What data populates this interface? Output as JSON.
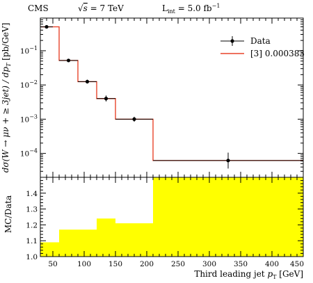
{
  "header": {
    "experiment": "CMS",
    "sqrt_prefix": "√",
    "sqrt_var": "s",
    "energy": " = 7 TeV",
    "lumi_main": "L",
    "lumi_sub": "int",
    "lumi_value": " = 5.0 fb",
    "lumi_exp": "−1"
  },
  "chart_data": [
    {
      "type": "step",
      "ylabel": "dσ(W → μν + ≥ 3jet) / dp_T [pb/GeV]",
      "ylabel_parts": {
        "pre": "dσ(W → μν + ≥ 3jet) / dp",
        "sub": "T",
        "post": " [pb/GeV]"
      },
      "xlim": [
        30,
        450
      ],
      "ylim": [
        2e-05,
        0.9
      ],
      "yscale": "log",
      "ytick_labels": [
        {
          "value": 0.0001,
          "base": "10",
          "exp": "−4"
        },
        {
          "value": 0.001,
          "base": "10",
          "exp": "−3"
        },
        {
          "value": 0.01,
          "base": "10",
          "exp": "−2"
        },
        {
          "value": 0.1,
          "base": "10",
          "exp": "−1"
        }
      ],
      "legend": {
        "placement": "top-right",
        "entries": [
          {
            "key": "data",
            "label": "Data",
            "color": "#000000"
          },
          {
            "key": "mc",
            "label": "[3] 0.000383",
            "color": "#e8442a"
          }
        ]
      },
      "series": [
        {
          "name": "Data",
          "kind": "points",
          "points": [
            {
              "x": 40,
              "xerr": 10,
              "y": 0.5,
              "ylo": 0.46,
              "yhi": 0.54
            },
            {
              "x": 75,
              "xerr": 15,
              "y": 0.052,
              "ylo": 0.047,
              "yhi": 0.057
            },
            {
              "x": 105,
              "xerr": 15,
              "y": 0.0125,
              "ylo": 0.011,
              "yhi": 0.0142
            },
            {
              "x": 135,
              "xerr": 15,
              "y": 0.004,
              "ylo": 0.0033,
              "yhi": 0.0049
            },
            {
              "x": 180,
              "xerr": 30,
              "y": 0.001,
              "ylo": 0.00084,
              "yhi": 0.00118
            },
            {
              "x": 330,
              "xerr": 120,
              "y": 6.2e-05,
              "ylo": 3.6e-05,
              "yhi": 0.000105
            }
          ]
        },
        {
          "name": "[3] 0.000383",
          "kind": "histogram",
          "bins": [
            {
              "lo": 30,
              "hi": 60,
              "y": 0.5
            },
            {
              "lo": 60,
              "hi": 90,
              "y": 0.052
            },
            {
              "lo": 90,
              "hi": 120,
              "y": 0.0125
            },
            {
              "lo": 120,
              "hi": 150,
              "y": 0.004
            },
            {
              "lo": 150,
              "hi": 210,
              "y": 0.001
            },
            {
              "lo": 210,
              "hi": 450,
              "y": 6.2e-05
            }
          ]
        }
      ]
    },
    {
      "type": "band",
      "ylabel": "MC/Data",
      "xlabel": "Third leading jet p_T [GeV]",
      "xlabel_parts": {
        "pre": "Third leading jet ",
        "var": "p",
        "sub": "T",
        "post": " [GeV]"
      },
      "xlim": [
        30,
        450
      ],
      "ylim": [
        1.0,
        1.5
      ],
      "xticks": [
        50,
        100,
        150,
        200,
        250,
        300,
        350,
        400,
        450
      ],
      "xtick_labels": [
        "50",
        "100",
        "150",
        "200",
        "250",
        "300",
        "350",
        "400",
        "450"
      ],
      "yticks": [
        1.0,
        1.1,
        1.2,
        1.3,
        1.4
      ],
      "ytick_labels": [
        "1.0",
        "1.1",
        "1.2",
        "1.3",
        "1.4"
      ],
      "band_color": "#ffff00",
      "bins": [
        {
          "lo": 30,
          "hi": 60,
          "y": 1.09
        },
        {
          "lo": 60,
          "hi": 120,
          "y": 1.17
        },
        {
          "lo": 120,
          "hi": 150,
          "y": 1.24
        },
        {
          "lo": 150,
          "hi": 210,
          "y": 1.21
        },
        {
          "lo": 210,
          "hi": 450,
          "y": 1.5
        }
      ]
    }
  ]
}
